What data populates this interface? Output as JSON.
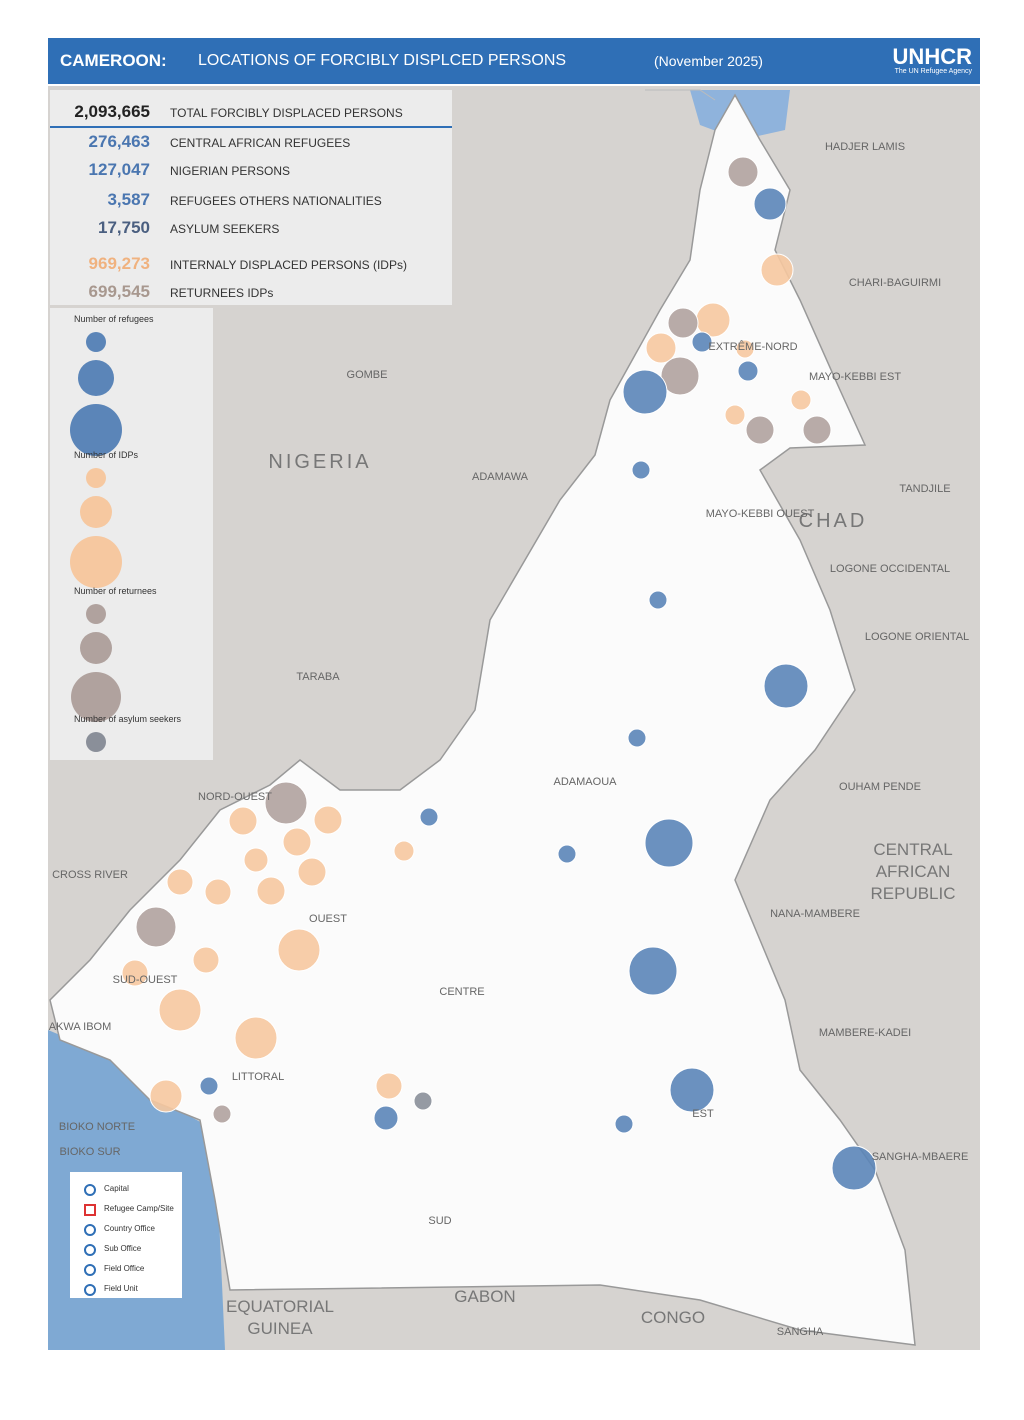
{
  "header": {
    "title": "CAMEROON:",
    "subtitle": "LOCATIONS OF FORCIBLY DISPLCED PERSONS",
    "date": "(November 2025)",
    "logo": "UNHCR",
    "logo_tagline": "The UN Refugee Agency"
  },
  "summary": {
    "rows": [
      {
        "value": "2,093,665",
        "label": "TOTAL FORCIBLY DISPLACED PERSONS"
      },
      {
        "value": "276,463",
        "label": "CENTRAL AFRICAN REFUGEES"
      },
      {
        "value": "127,047",
        "label": "NIGERIAN PERSONS"
      },
      {
        "value": "3,587",
        "label": "REFUGEES OTHERS NATIONALITIES"
      },
      {
        "value": "17,750",
        "label": "ASYLUM SEEKERS"
      },
      {
        "value": "969,273",
        "label": "INTERNALY DISPLACED PERSONS (IDPs)"
      },
      {
        "value": "699,545",
        "label": "RETURNEES IDPs"
      }
    ]
  },
  "legend": {
    "groups": [
      "Number of refugees",
      "Number of IDPs",
      "Number of returnees",
      "Number of asylum seekers"
    ]
  },
  "symbols": [
    "Capital",
    "Refugee Camp/Site",
    "Country Office",
    "Sub Office",
    "Field Office",
    "Field Unit"
  ],
  "map_labels": [
    "NIGERIA",
    "CHAD",
    "CENTRAL",
    "AFRICAN",
    "REPUBLIC",
    "EXTRÊME-NORD",
    "ADAMAOUA",
    "CENTRE",
    "EST",
    "SUD",
    "LITTORAL",
    "OUEST",
    "NORD-OUEST",
    "SUD-OUEST",
    "AKWA IBOM",
    "CROSS RIVER",
    "TARABA",
    "ADAMAWA",
    "GOMBE",
    "HADJER LAMIS",
    "CHARI-BAGUIRMI",
    "MAYO-KEBBI EST",
    "MAYO-KEBBI OUEST",
    "TANDJILE",
    "LOGONE OCCIDENTAL",
    "LOGONE ORIENTAL",
    "OUHAM PENDE",
    "NANA-MAMBERE",
    "MAMBERE-KADEI",
    "SANGHA-MBAERE",
    "EQUATORIAL",
    "GUINEA",
    "GABON",
    "CONGO",
    "BIOKO NORTE",
    "BIOKO SUR",
    "SANGHA"
  ]
}
